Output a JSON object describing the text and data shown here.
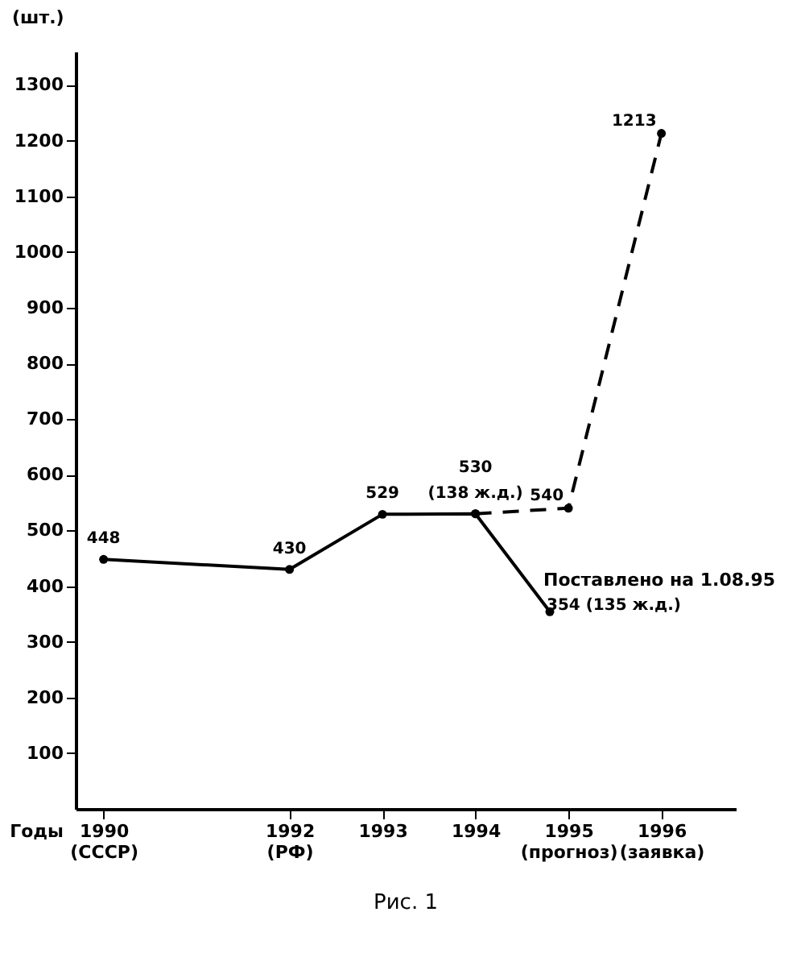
{
  "chart_data": {
    "type": "line",
    "xlabel": "Годы",
    "ylabel": "(шт.)",
    "xlim": [
      1989.7,
      1996.8
    ],
    "ylim": [
      0,
      1360
    ],
    "xticks": [
      {
        "value": 1990,
        "label": "1990\n(СССР)"
      },
      {
        "value": 1992,
        "label": "1992\n(РФ)"
      },
      1993,
      1994,
      {
        "value": 1995,
        "label": "1995\n(прогноз)"
      },
      {
        "value": 1996,
        "label": "1996\n(заявка)"
      }
    ],
    "yticks": [
      100,
      200,
      300,
      400,
      500,
      600,
      700,
      800,
      900,
      1000,
      1100,
      1200,
      1300
    ],
    "grid": false,
    "marker": "circle",
    "series": [
      {
        "color": "#000000",
        "line_style": "solid",
        "x": [
          1990,
          1992,
          1993,
          1994,
          1994.8
        ],
        "values": [
          448,
          430,
          529,
          530,
          354
        ],
        "value_labels": [
          "448",
          "430",
          "529",
          "530\n(138 ж.д.)",
          "354 (135 ж.д.)"
        ]
      },
      {
        "color": "#000000",
        "line_style": "dashed",
        "x": [
          1994,
          1995,
          1996
        ],
        "values": [
          530,
          540,
          1213
        ],
        "value_labels": [
          null,
          "540",
          "1213"
        ]
      }
    ],
    "annotations": [
      {
        "text": "Поставлено на 1.08.95",
        "x": 1994.8,
        "y": 354
      },
      "Рис. 1"
    ]
  }
}
